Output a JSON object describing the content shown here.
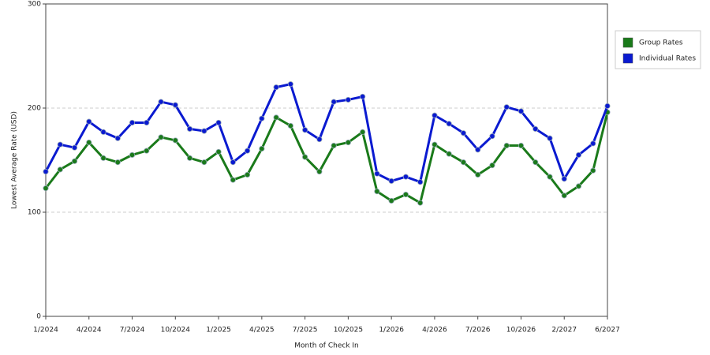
{
  "chart_data": {
    "type": "line",
    "xlabel": "Month of Check In",
    "ylabel": "Lowest Average Rate (USD)",
    "categories": [
      "1/2024",
      null,
      null,
      "4/2024",
      null,
      null,
      "7/2024",
      null,
      null,
      "10/2024",
      null,
      null,
      "1/2025",
      null,
      null,
      "4/2025",
      null,
      null,
      "7/2025",
      null,
      null,
      "10/2025",
      null,
      null,
      "1/2026",
      null,
      null,
      "4/2026",
      null,
      null,
      "7/2026",
      null,
      null,
      "10/2026",
      null,
      null,
      "2/2027",
      null,
      null,
      "6/2027"
    ],
    "series": [
      {
        "name": "Group Rates",
        "color": "#1a7a1a",
        "values": [
          123,
          141,
          149,
          167,
          152,
          148,
          155,
          159,
          172,
          169,
          152,
          148,
          158,
          131,
          136,
          161,
          191,
          183,
          153,
          139,
          164,
          167,
          177,
          120,
          111,
          117,
          109,
          165,
          156,
          148,
          136,
          145,
          164,
          164,
          148,
          134,
          116,
          125,
          140,
          196
        ]
      },
      {
        "name": "Individual Rates",
        "color": "#0a1ad0",
        "values": [
          139,
          165,
          162,
          187,
          177,
          171,
          186,
          186,
          206,
          203,
          180,
          178,
          186,
          148,
          159,
          190,
          220,
          223,
          179,
          170,
          206,
          208,
          211,
          137,
          130,
          134,
          129,
          193,
          185,
          176,
          160,
          173,
          201,
          197,
          180,
          171,
          132,
          155,
          166,
          202
        ]
      }
    ],
    "ylim": [
      0,
      300
    ],
    "yticks": [
      0,
      100,
      200,
      300
    ],
    "grid": true,
    "legend": "right"
  }
}
